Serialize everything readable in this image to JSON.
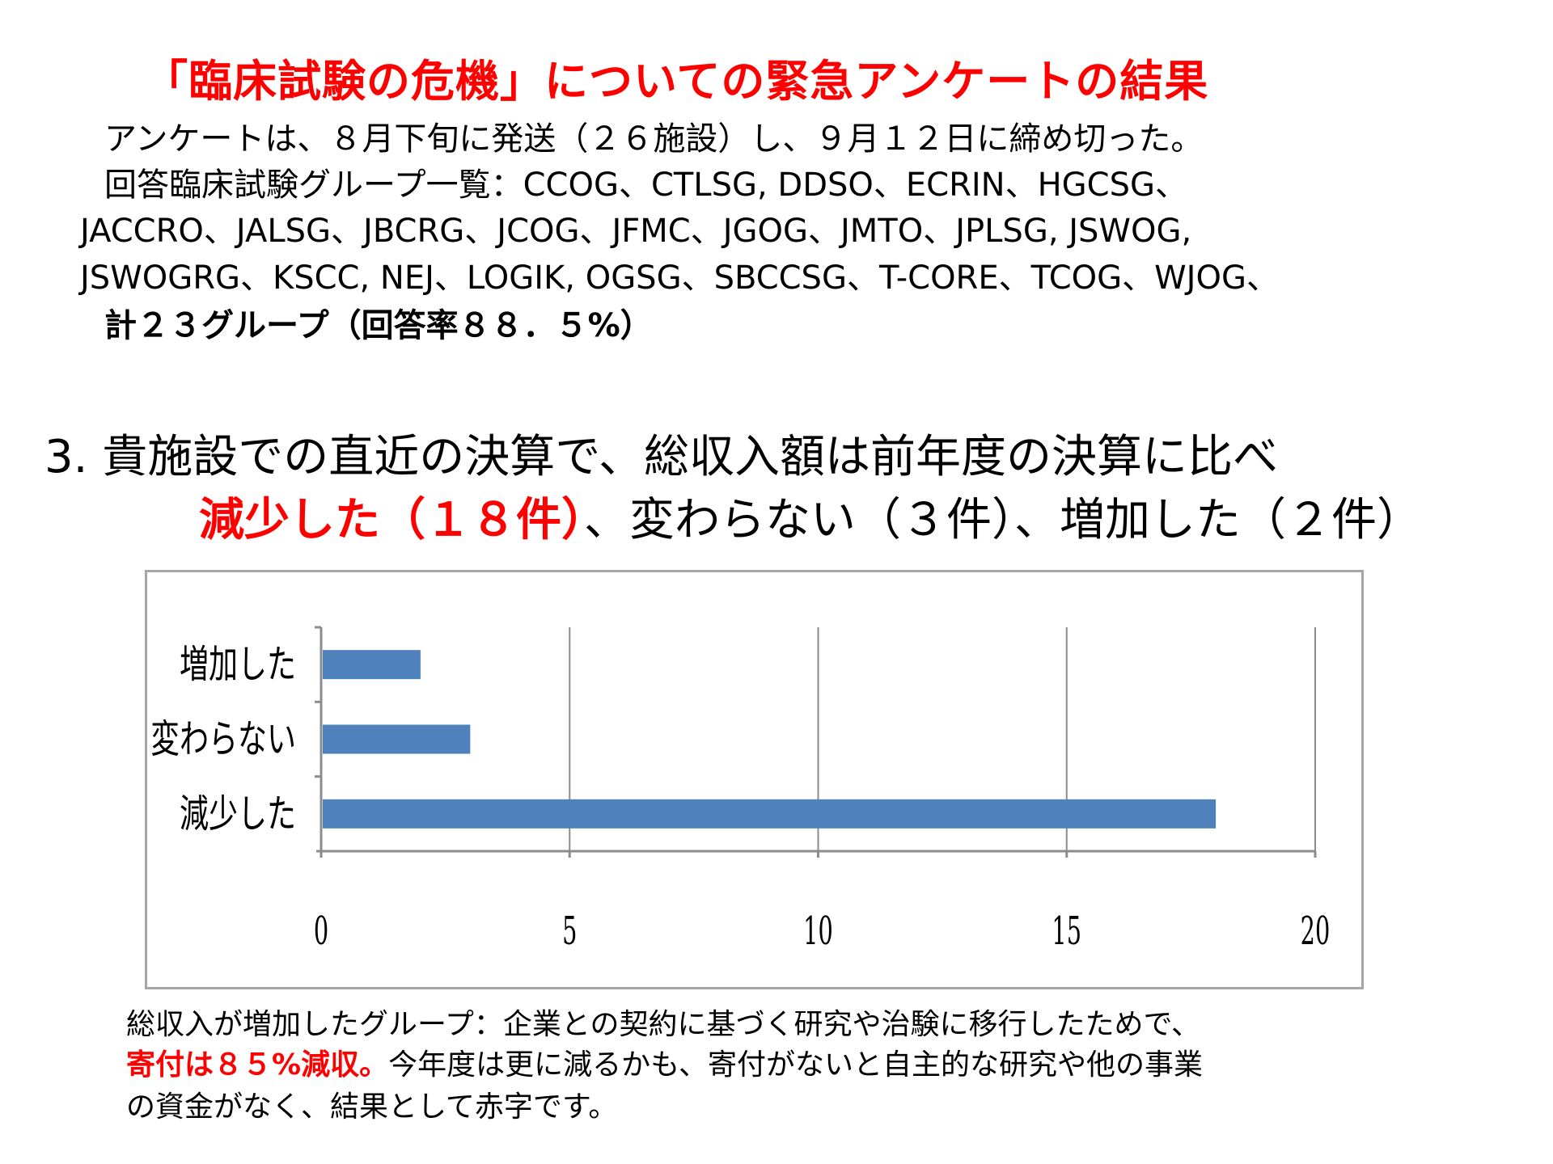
{
  "title": "「臨床試験の危機」についての緊急アンケートの結果",
  "intro": {
    "line1": "アンケートは、８月下旬に発送（２６施設）し、９月１２日に締め切った。",
    "line2": "回答臨床試験グループ一覧：CCOG、CTLSG, DDSO、ECRIN、HGCSG、",
    "line3": "JACCRO、JALSG、JBCRG、JCOG、JFMC、JGOG、JMTO、JPLSG, JSWOG,",
    "line4": "JSWOGRG、KSCC, NEJ、LOGIK, OGSG、SBCCSG、T-CORE、TCOG、WJOG、",
    "line5": "計２３グループ（回答率８８．５%）"
  },
  "question": {
    "line1": "3.  貴施設での直近の決算で、総収入額は前年度の決算に比べ",
    "highlight": "減少した（１８件）",
    "rest": "、変わらない（３件）、増加した（２件）"
  },
  "chart_data": {
    "type": "bar",
    "orientation": "horizontal",
    "categories": [
      "増加した",
      "変わらない",
      "減少した"
    ],
    "values": [
      2,
      3,
      18
    ],
    "xlim": [
      0,
      20
    ],
    "x_ticks": [
      "0",
      "5",
      "10",
      "15",
      "20"
    ],
    "grid": true,
    "bar_color": "#4F81BD"
  },
  "note": {
    "line1": "総収入が増加したグループ：企業との契約に基づく研究や治験に移行したためで、",
    "line2_highlight": "寄付は８５%減収。",
    "line2_rest": "今年度は更に減るかも、寄付がないと自主的な研究や他の事業",
    "line3": "の資金がなく、結果として赤字です。"
  }
}
